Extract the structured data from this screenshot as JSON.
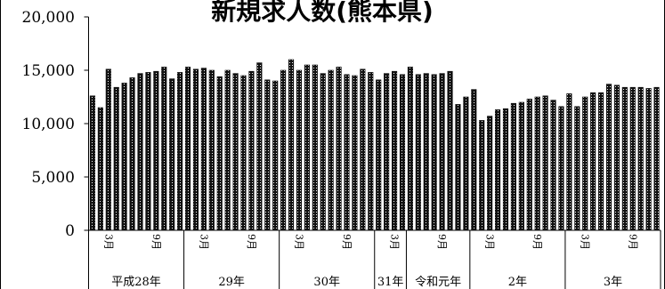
{
  "chart_data": {
    "type": "bar",
    "title": "新規求人数(熊本県)",
    "ylim": [
      0,
      20000
    ],
    "yticks": [
      "0",
      "5,000",
      "10,000",
      "15,000",
      "20,000"
    ],
    "ytick_values": [
      0,
      5000,
      10000,
      15000,
      20000
    ],
    "grid": false,
    "bar_color": "#111111",
    "month_labels": [
      "3月",
      "9月"
    ],
    "year_groups": [
      {
        "label": "平成28年",
        "months": [
          1,
          2,
          3,
          4,
          5,
          6,
          7,
          8,
          9,
          10,
          11,
          12
        ]
      },
      {
        "label": "29年",
        "months": [
          1,
          2,
          3,
          4,
          5,
          6,
          7,
          8,
          9,
          10,
          11,
          12
        ]
      },
      {
        "label": "30年",
        "months": [
          1,
          2,
          3,
          4,
          5,
          6,
          7,
          8,
          9,
          10,
          11,
          12
        ]
      },
      {
        "label": "31年",
        "months": [
          1,
          2,
          3,
          4
        ]
      },
      {
        "label": "令和元年",
        "months": [
          5,
          6,
          7,
          8,
          9,
          10,
          11,
          12
        ]
      },
      {
        "label": "2年",
        "months": [
          1,
          2,
          3,
          4,
          5,
          6,
          7,
          8,
          9,
          10,
          11,
          12
        ]
      },
      {
        "label": "3年",
        "months": [
          1,
          2,
          3,
          4,
          5,
          6,
          7,
          8,
          9,
          10,
          11,
          12
        ]
      }
    ],
    "values": [
      12600,
      11500,
      15100,
      13400,
      13800,
      14300,
      14700,
      14800,
      14900,
      15300,
      14200,
      14800,
      15300,
      15100,
      15200,
      15000,
      14400,
      15000,
      14700,
      14500,
      14900,
      15700,
      14100,
      14000,
      15000,
      16000,
      15000,
      15500,
      15500,
      14700,
      15000,
      15300,
      14600,
      14500,
      15100,
      14800,
      14100,
      14700,
      14900,
      14600,
      15300,
      14600,
      14700,
      14600,
      14700,
      14900,
      11800,
      12500,
      13200,
      10300,
      10700,
      11300,
      11400,
      11900,
      12000,
      12300,
      12500,
      12600,
      12200,
      11600,
      12800,
      11600,
      12500,
      12900,
      12900,
      13700,
      13600,
      13400,
      13400,
      13400,
      13300,
      13400
    ]
  }
}
